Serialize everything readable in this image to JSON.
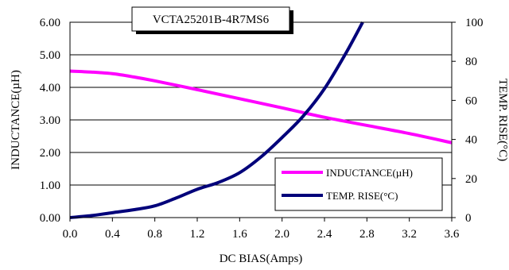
{
  "chart_data": {
    "type": "line",
    "title": "VCTA25201B-4R7MS6",
    "xlabel": "DC BIAS(Amps)",
    "ylabel": "INDUCTANCE(µH)",
    "y2label": "TEMP. RISE(°C)",
    "xlim": [
      0,
      3.6
    ],
    "ylim": [
      0,
      6
    ],
    "y2lim": [
      0,
      100
    ],
    "x_ticks": [
      "0.0",
      "0.4",
      "0.8",
      "1.2",
      "1.6",
      "2.0",
      "2.4",
      "2.8",
      "3.2",
      "3.6"
    ],
    "y_ticks": [
      "0.00",
      "1.00",
      "2.00",
      "3.00",
      "4.00",
      "5.00",
      "6.00"
    ],
    "y2_ticks": [
      "0",
      "20",
      "40",
      "60",
      "80",
      "100"
    ],
    "grid": "horizontal",
    "legend_position": "bottom-right",
    "series": [
      {
        "name": "INDUCTANCE(µH)",
        "axis": "left",
        "color": "#ff00ff",
        "x": [
          0.0,
          0.2,
          0.4,
          0.6,
          0.8,
          1.2,
          1.6,
          2.0,
          2.4,
          2.8,
          3.2,
          3.6
        ],
        "y": [
          4.5,
          4.47,
          4.42,
          4.32,
          4.2,
          3.93,
          3.65,
          3.37,
          3.08,
          2.83,
          2.58,
          2.3
        ]
      },
      {
        "name": "TEMP. RISE(°C)",
        "axis": "right",
        "color": "#00007a",
        "x": [
          0.0,
          0.2,
          0.4,
          0.6,
          0.8,
          1.0,
          1.2,
          1.4,
          1.6,
          1.8,
          2.0,
          2.2,
          2.4,
          2.6,
          2.76
        ],
        "y": [
          0,
          1,
          2.5,
          4,
          6,
          10,
          14.5,
          18,
          23,
          31,
          41,
          52,
          66,
          84,
          100
        ]
      }
    ]
  }
}
